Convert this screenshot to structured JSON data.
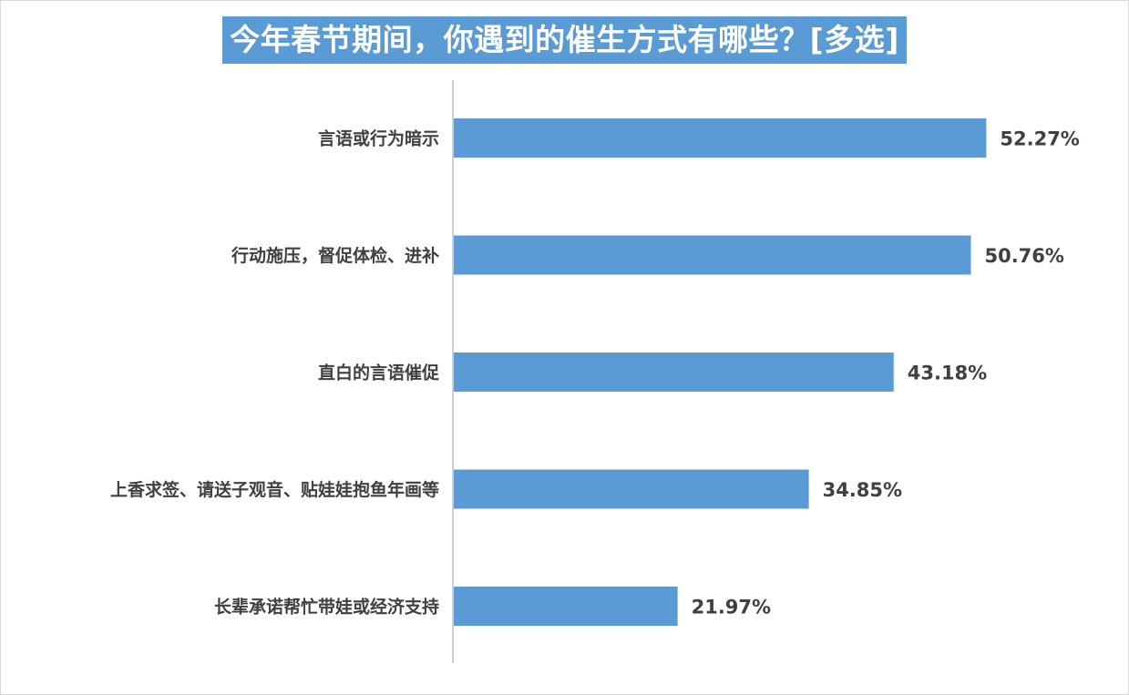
{
  "chart_data": {
    "type": "bar",
    "orientation": "horizontal",
    "title": "今年春节期间，你遇到的催生方式有哪些？[多选]",
    "categories": [
      "言语或行为暗示",
      "行动施压，督促体检、进补",
      "直白的言语催促",
      "上香求签、请送子观音、贴娃娃抱鱼年画等",
      "长辈承诺帮忙带娃或经济支持"
    ],
    "values": [
      52.27,
      50.76,
      43.18,
      34.85,
      21.97
    ],
    "value_labels": [
      "52.27%",
      "50.76%",
      "43.18%",
      "34.85%",
      "21.97%"
    ],
    "unit": "%",
    "xlim": [
      0,
      100
    ],
    "grid": false,
    "legend": "none",
    "bar_color": "#5b9bd5",
    "title_background": "#5b9bd5"
  }
}
